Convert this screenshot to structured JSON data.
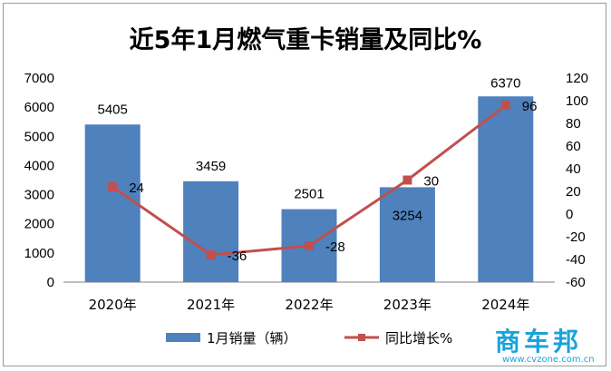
{
  "chart_data": {
    "type": "bar",
    "title": "近5年1月燃气重卡销量及同比%",
    "categories": [
      "2020年",
      "2021年",
      "2022年",
      "2023年",
      "2024年"
    ],
    "series": [
      {
        "name": "1月销量（辆）",
        "type": "bar",
        "axis": "left",
        "color": "#4f81bd",
        "values": [
          5405,
          3459,
          2501,
          3254,
          6370
        ]
      },
      {
        "name": "同比增长%",
        "type": "line",
        "axis": "right",
        "color": "#c0504d",
        "values": [
          24,
          -36,
          -28,
          30,
          96
        ]
      }
    ],
    "y_left": {
      "min": 0,
      "max": 7000,
      "step": 1000
    },
    "y_right": {
      "min": -60,
      "max": 120,
      "step": 20
    },
    "grid": false,
    "legend_position": "bottom"
  },
  "watermark": {
    "logo_text": "商车邦",
    "url_text": "www.cvzone.com.cn",
    "color": "#1aa3d9"
  }
}
